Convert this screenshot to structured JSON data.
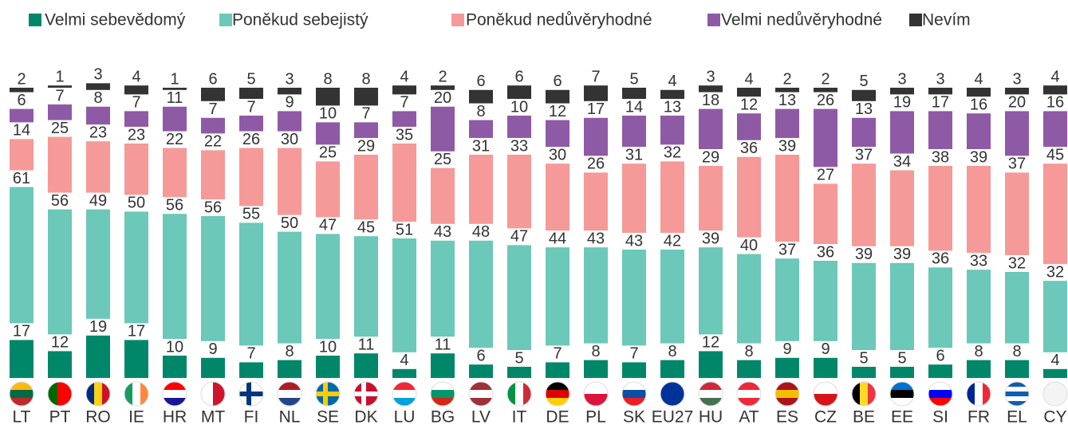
{
  "chart_data": {
    "type": "bar",
    "stacked": true,
    "categories": [
      "LT",
      "PT",
      "RO",
      "IE",
      "HR",
      "MT",
      "FI",
      "NL",
      "SE",
      "DK",
      "LU",
      "BG",
      "LV",
      "IT",
      "DE",
      "PL",
      "SK",
      "EU27",
      "HU",
      "AT",
      "ES",
      "CZ",
      "BE",
      "EE",
      "SI",
      "FR",
      "EL",
      "CY"
    ],
    "series": [
      {
        "name": "Velmi sebevědomý",
        "color": "#00876a",
        "values": [
          17,
          12,
          19,
          17,
          10,
          9,
          7,
          8,
          10,
          11,
          4,
          11,
          6,
          5,
          7,
          8,
          7,
          8,
          12,
          8,
          9,
          9,
          5,
          5,
          6,
          8,
          8,
          4
        ]
      },
      {
        "name": "Poněkud sebejistý",
        "color": "#6cc8b8",
        "values": [
          61,
          56,
          49,
          50,
          56,
          56,
          55,
          50,
          47,
          45,
          51,
          43,
          48,
          47,
          44,
          43,
          43,
          42,
          39,
          40,
          37,
          36,
          39,
          39,
          36,
          33,
          32,
          32
        ]
      },
      {
        "name": "Poněkud nedůvěryhodné",
        "color": "#f59a98",
        "values": [
          14,
          25,
          23,
          23,
          22,
          22,
          26,
          30,
          25,
          29,
          35,
          25,
          31,
          33,
          30,
          26,
          31,
          32,
          29,
          36,
          39,
          27,
          37,
          34,
          38,
          39,
          37,
          45
        ]
      },
      {
        "name": "Velmi nedůvěryhodné",
        "color": "#8f5aa5",
        "values": [
          6,
          7,
          8,
          7,
          11,
          7,
          7,
          9,
          10,
          7,
          7,
          20,
          8,
          10,
          12,
          17,
          14,
          13,
          18,
          12,
          13,
          26,
          13,
          19,
          17,
          16,
          20,
          16
        ]
      },
      {
        "name": "Nevím",
        "color": "#333333",
        "values": [
          2,
          1,
          3,
          4,
          1,
          6,
          5,
          3,
          8,
          8,
          4,
          2,
          6,
          6,
          6,
          7,
          5,
          4,
          3,
          4,
          2,
          2,
          5,
          3,
          3,
          4,
          3,
          4
        ]
      }
    ]
  }
}
